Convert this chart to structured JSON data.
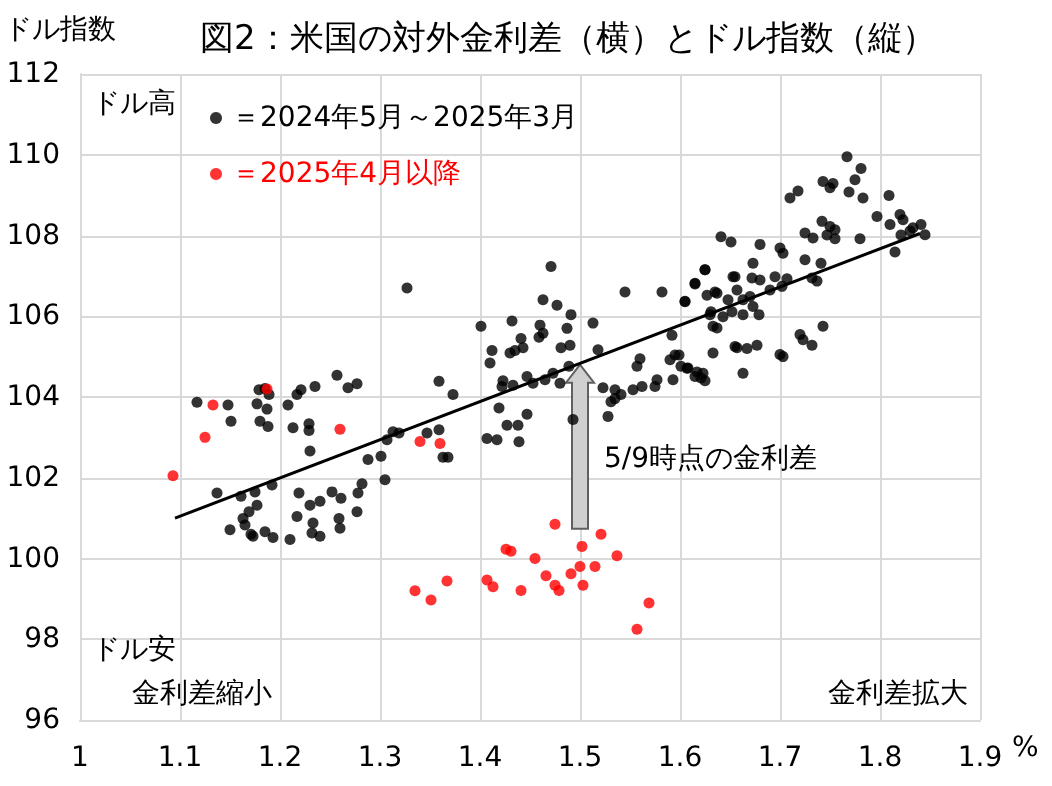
{
  "chart_data": {
    "type": "scatter",
    "title": "図2：米国の対外金利差（横）とドル指数（縦）",
    "ylabel": "ドル指数",
    "xlabel": "%",
    "xlim": [
      1,
      1.9
    ],
    "xticks": [
      1,
      1.1,
      1.2,
      1.3,
      1.4,
      1.5,
      1.6,
      1.7,
      1.8,
      1.9
    ],
    "ylim": [
      96,
      112
    ],
    "yticks": [
      96,
      98,
      100,
      102,
      104,
      106,
      108,
      110,
      112
    ],
    "grid": true,
    "legend": "top left",
    "marker": "circle",
    "annotations": [
      "ドル高",
      "ドル安",
      "金利差縮小",
      "金利差拡大",
      {
        "text": "5/9時点の金利差",
        "x": 1.5,
        "y": 104.8
      }
    ],
    "series": [
      {
        "name": "＝2024年5月～2025年3月",
        "color": "#000000",
        "x": [
          1.117,
          1.148,
          1.151,
          1.179,
          1.185,
          1.189,
          1.177,
          1.187,
          1.18,
          1.188,
          1.208,
          1.217,
          1.221,
          1.235,
          1.257,
          1.268,
          1.277,
          1.213,
          1.229,
          1.229,
          1.23,
          1.137,
          1.161,
          1.175,
          1.192,
          1.177,
          1.169,
          1.163,
          1.165,
          1.15,
          1.171,
          1.173,
          1.185,
          1.193,
          1.21,
          1.217,
          1.219,
          1.23,
          1.233,
          1.232,
          1.24,
          1.24,
          1.252,
          1.261,
          1.259,
          1.26,
          1.277,
          1.278,
          1.282,
          1.288,
          1.301,
          1.305,
          1.307,
          1.313,
          1.319,
          1.347,
          1.359,
          1.359,
          1.373,
          1.363,
          1.368,
          1.327,
          1.471,
          1.545,
          1.582,
          1.615,
          1.625,
          1.635,
          1.653,
          1.463,
          1.477,
          1.491,
          1.513,
          1.432,
          1.46,
          1.463,
          1.459,
          1.441,
          1.443,
          1.435,
          1.412,
          1.41,
          1.43,
          1.487,
          1.481,
          1.49,
          1.518,
          1.401,
          1.605,
          1.631,
          1.633,
          1.648,
          1.655,
          1.592,
          1.595,
          1.59,
          1.601,
          1.608,
          1.615,
          1.623,
          1.625,
          1.593,
          1.577,
          1.575,
          1.56,
          1.557,
          1.562,
          1.553,
          1.541,
          1.535,
          1.531,
          1.535,
          1.523,
          1.528,
          1.493,
          1.489,
          1.473,
          1.48,
          1.465,
          1.447,
          1.453,
          1.433,
          1.423,
          1.422,
          1.419,
          1.427,
          1.438,
          1.439,
          1.417,
          1.407,
          1.447,
          1.767,
          1.781,
          1.775,
          1.743,
          1.753,
          1.75,
          1.769,
          1.783,
          1.718,
          1.71,
          1.809,
          1.797,
          1.82,
          1.823,
          1.81,
          1.833,
          1.841,
          1.845,
          1.83,
          1.821,
          1.815,
          1.78,
          1.742,
          1.75,
          1.755,
          1.747,
          1.755,
          1.725,
          1.733,
          1.741,
          1.732,
          1.737,
          1.7,
          1.703,
          1.68,
          1.641,
          1.651,
          1.673,
          1.725,
          1.707,
          1.695,
          1.672,
          1.655,
          1.625,
          1.615,
          1.605,
          1.627,
          1.637,
          1.657,
          1.663,
          1.67,
          1.673,
          1.679,
          1.663,
          1.652,
          1.643,
          1.63,
          1.637,
          1.599,
          1.607,
          1.617,
          1.621,
          1.633,
          1.657,
          1.667,
          1.677,
          1.663,
          1.7,
          1.703,
          1.72,
          1.723,
          1.732,
          1.743,
          1.68,
          1.69,
          1.702
        ],
        "values": [
          103.87,
          103.8,
          103.4,
          104.18,
          104.21,
          104.06,
          103.83,
          103.7,
          103.4,
          103.27,
          103.8,
          104.06,
          104.18,
          104.26,
          104.54,
          104.23,
          104.33,
          103.24,
          103.34,
          103.17,
          102.66,
          101.62,
          101.54,
          101.65,
          101.82,
          101.32,
          101.16,
          100.99,
          100.83,
          100.71,
          100.6,
          100.55,
          100.66,
          100.52,
          100.47,
          101.04,
          101.62,
          101.32,
          100.88,
          100.63,
          100.55,
          101.42,
          101.65,
          101.49,
          100.99,
          100.75,
          101.16,
          101.62,
          101.85,
          102.45,
          102.53,
          101.95,
          102.94,
          103.14,
          103.11,
          103.11,
          103.19,
          104.39,
          104.06,
          102.51,
          102.51,
          106.7,
          107.23,
          106.6,
          106.6,
          106.8,
          107.15,
          106.6,
          106.98,
          106.41,
          106.27,
          106.04,
          105.83,
          105.88,
          105.78,
          105.58,
          105.48,
          105.45,
          105.22,
          105.15,
          105.15,
          104.84,
          105.09,
          105.7,
          105.22,
          105.28,
          105.17,
          105.75,
          106.37,
          106.11,
          105.75,
          106.41,
          105.25,
          105.53,
          105.04,
          104.92,
          104.76,
          104.72,
          104.51,
          104.59,
          104.4,
          104.43,
          104.43,
          104.26,
          104.95,
          104.76,
          104.26,
          104.18,
          104.06,
          103.96,
          103.88,
          104.18,
          104.23,
          103.52,
          103.44,
          104.76,
          104.59,
          104.34,
          104.43,
          104.51,
          104.34,
          104.29,
          104.4,
          104.26,
          103.73,
          103.3,
          103.3,
          102.89,
          102.94,
          102.97,
          103.57,
          109.95,
          109.66,
          109.38,
          109.34,
          109.29,
          109.18,
          109.08,
          108.93,
          109.1,
          108.93,
          108.99,
          108.47,
          108.52,
          108.39,
          108.27,
          108.19,
          108.27,
          108.02,
          108.11,
          108.01,
          107.59,
          107.92,
          108.35,
          108.22,
          108.14,
          108.01,
          107.92,
          108.06,
          107.94,
          107.31,
          106.95,
          106.87,
          107.69,
          107.56,
          107.78,
          107.97,
          107.84,
          107.31,
          107.4,
          106.93,
          106.98,
          106.95,
          106.98,
          107.15,
          106.82,
          106.36,
          106.52,
          106.57,
          106.65,
          106.41,
          106.49,
          106.24,
          106.04,
          106.04,
          106.11,
          105.99,
          106.04,
          105.71,
          105.04,
          104.71,
          104.62,
          104.47,
          105.09,
          105.22,
          105.2,
          105.28,
          104.59,
          105.05,
          105.0,
          105.55,
          105.42,
          105.28,
          105.75,
          106.9,
          106.65,
          106.74
        ]
      },
      {
        "name": "＝2025年4月以降",
        "color": "#ff0000",
        "x": [
          1.093,
          1.133,
          1.125,
          1.187,
          1.26,
          1.34,
          1.36,
          1.335,
          1.351,
          1.367,
          1.407,
          1.413,
          1.426,
          1.431,
          1.441,
          1.455,
          1.466,
          1.475,
          1.475,
          1.479,
          1.491,
          1.5,
          1.502,
          1.503,
          1.515,
          1.521,
          1.537,
          1.569,
          1.557
        ],
        "values": [
          102.05,
          103.8,
          103.0,
          104.2,
          103.2,
          102.9,
          102.85,
          99.2,
          98.97,
          99.44,
          99.47,
          99.3,
          100.23,
          100.18,
          99.21,
          100.0,
          99.57,
          100.85,
          99.34,
          99.21,
          99.62,
          99.8,
          100.3,
          99.34,
          99.8,
          100.6,
          100.07,
          98.9,
          98.25
        ]
      },
      {
        "type": "line",
        "marker": "none",
        "color": "#000000",
        "x": [
          1.095,
          1.84
        ],
        "values": [
          101.0,
          108.05
        ]
      }
    ]
  }
}
